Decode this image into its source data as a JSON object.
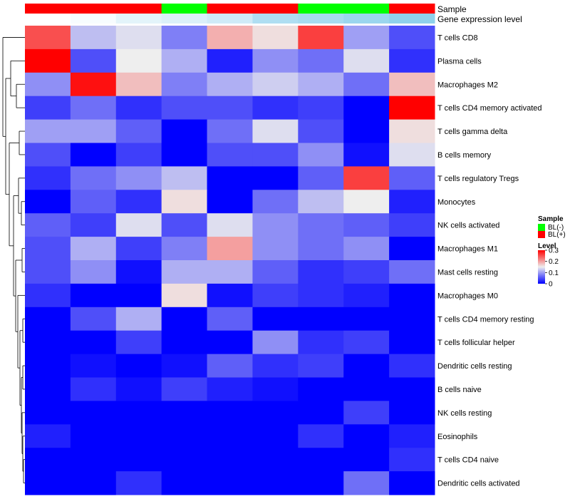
{
  "chart_data": {
    "type": "heatmap",
    "annotation_tracks": {
      "sample_label": "Sample",
      "expression_label": "Gene expression level"
    },
    "columns": [
      {
        "sample": "BL(+)",
        "expression_level": 0.0
      },
      {
        "sample": "BL(+)",
        "expression_level": 0.02
      },
      {
        "sample": "BL(+)",
        "expression_level": 0.07
      },
      {
        "sample": "BL(-)",
        "expression_level": 0.09
      },
      {
        "sample": "BL(+)",
        "expression_level": 0.12
      },
      {
        "sample": "BL(+)",
        "expression_level": 0.2
      },
      {
        "sample": "BL(-)",
        "expression_level": 0.22
      },
      {
        "sample": "BL(-)",
        "expression_level": 0.25
      },
      {
        "sample": "BL(+)",
        "expression_level": 0.28
      }
    ],
    "rows": [
      "T cells CD8",
      "Plasma cells",
      "Macrophages M2",
      "T cells CD4 memory activated",
      "T cells gamma delta",
      "B cells memory",
      "T cells regulatory  Tregs",
      "Monocytes",
      "NK cells activated",
      "Macrophages M1",
      "Mast cells resting",
      "Macrophages M0",
      "T cells CD4 memory resting",
      "T cells follicular helper",
      "Dendritic cells resting",
      "B cells naive",
      "NK cells resting",
      "Eosinophils",
      "T cells CD4 naive",
      "Dendritic cells activated"
    ],
    "values": [
      [
        0.25,
        0.12,
        0.14,
        0.08,
        0.19,
        0.16,
        0.26,
        0.1,
        0.05
      ],
      [
        0.32,
        0.05,
        0.15,
        0.11,
        0.02,
        0.09,
        0.07,
        0.14,
        0.03
      ],
      [
        0.09,
        0.29,
        0.18,
        0.08,
        0.11,
        0.13,
        0.11,
        0.07,
        0.18
      ],
      [
        0.04,
        0.07,
        0.03,
        0.05,
        0.05,
        0.03,
        0.04,
        0.0,
        0.31
      ],
      [
        0.1,
        0.1,
        0.06,
        0.0,
        0.07,
        0.14,
        0.05,
        0.0,
        0.16
      ],
      [
        0.05,
        0.0,
        0.04,
        0.0,
        0.05,
        0.05,
        0.09,
        0.01,
        0.14
      ],
      [
        0.03,
        0.07,
        0.09,
        0.12,
        0.0,
        0.0,
        0.06,
        0.26,
        0.06
      ],
      [
        0.0,
        0.06,
        0.03,
        0.16,
        0.0,
        0.07,
        0.12,
        0.15,
        0.02
      ],
      [
        0.06,
        0.04,
        0.14,
        0.05,
        0.14,
        0.09,
        0.07,
        0.06,
        0.04
      ],
      [
        0.05,
        0.11,
        0.04,
        0.08,
        0.2,
        0.09,
        0.07,
        0.09,
        0.0
      ],
      [
        0.05,
        0.09,
        0.01,
        0.11,
        0.11,
        0.06,
        0.03,
        0.04,
        0.07
      ],
      [
        0.03,
        0.0,
        0.0,
        0.16,
        0.01,
        0.04,
        0.03,
        0.02,
        0.0
      ],
      [
        0.0,
        0.05,
        0.11,
        0.0,
        0.06,
        0.0,
        0.0,
        0.0,
        0.0
      ],
      [
        0.0,
        0.0,
        0.04,
        0.0,
        0.0,
        0.09,
        0.03,
        0.04,
        0.0
      ],
      [
        0.0,
        0.01,
        0.0,
        0.01,
        0.06,
        0.03,
        0.04,
        0.0,
        0.03
      ],
      [
        0.0,
        0.03,
        0.01,
        0.04,
        0.02,
        0.01,
        0.0,
        0.0,
        0.0
      ],
      [
        0.0,
        0.0,
        0.0,
        0.0,
        0.0,
        0.0,
        0.0,
        0.04,
        0.0
      ],
      [
        0.02,
        0.0,
        0.0,
        0.0,
        0.0,
        0.0,
        0.03,
        0.0,
        0.02
      ],
      [
        0.0,
        0.0,
        0.0,
        0.0,
        0.0,
        0.0,
        0.0,
        0.0,
        0.03
      ],
      [
        0.0,
        0.0,
        0.03,
        0.0,
        0.0,
        0.0,
        0.0,
        0.07,
        0.0
      ]
    ],
    "color_scale": {
      "range": [
        0,
        0.3
      ],
      "low": "#0000ff",
      "mid": "#eeeeee",
      "mid_value": 0.15,
      "high": "#ff0000"
    },
    "sample_colors": {
      "BL(-)": "#00ff00",
      "BL(+)": "#ff0000"
    },
    "expression_colors": {
      "low": "#ffffff",
      "high": "#87ceeb"
    },
    "legend": {
      "sample_title": "Sample",
      "sample_entries": [
        "BL(-)",
        "BL(+)"
      ],
      "level_title": "Level",
      "level_ticks": [
        {
          "value": 0.3,
          "label": "0.3"
        },
        {
          "value": 0.2,
          "label": "0.2"
        },
        {
          "value": 0.1,
          "label": "0.1"
        },
        {
          "value": 0.0,
          "label": "0"
        }
      ],
      "placement": "right"
    }
  }
}
